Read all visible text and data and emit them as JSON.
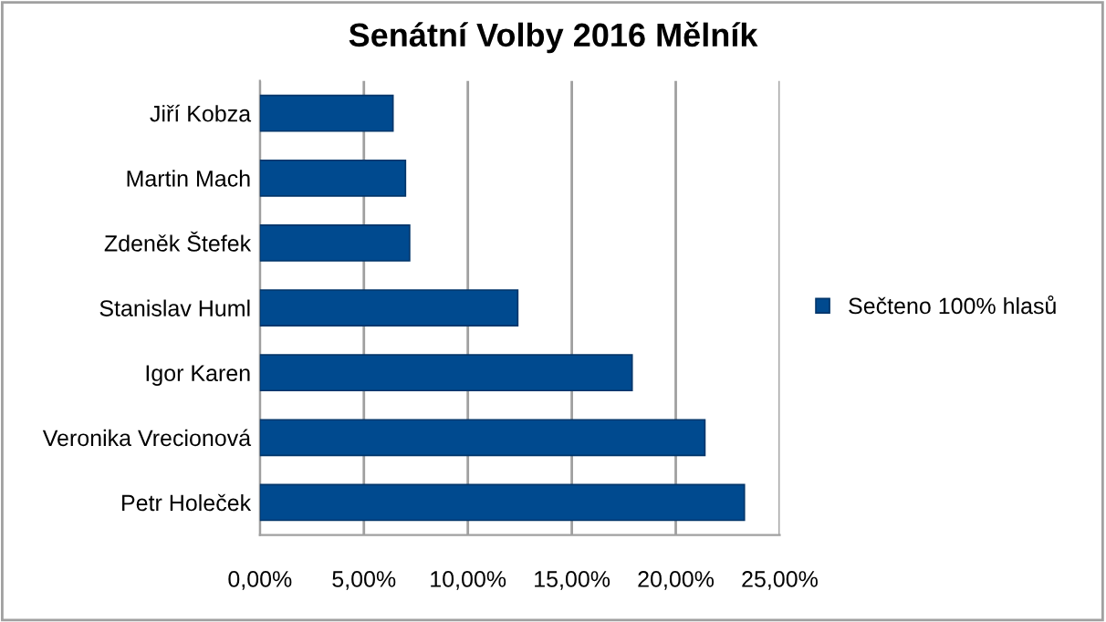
{
  "chart_data": {
    "type": "bar",
    "orientation": "horizontal",
    "title": "Senátní Volby 2016 Mělník",
    "categories": [
      "Jiří Kobza",
      "Martin Mach",
      "Zdeněk Štefek",
      "Stanislav Huml",
      "Igor Karen",
      "Veronika Vrecionová",
      "Petr Holeček"
    ],
    "series": [
      {
        "name": "Sečteno 100% hlasů",
        "color": "#004a8f",
        "values": [
          6.4,
          7.0,
          7.2,
          12.4,
          17.9,
          21.4,
          23.3
        ]
      }
    ],
    "xlim": [
      0,
      25
    ],
    "xticks": [
      {
        "value": 0,
        "label": "0,00%"
      },
      {
        "value": 5,
        "label": "5,00%"
      },
      {
        "value": 10,
        "label": "10,00%"
      },
      {
        "value": 15,
        "label": "15,00%"
      },
      {
        "value": 20,
        "label": "20,00%"
      },
      {
        "value": 25,
        "label": "25,00%"
      }
    ],
    "grid": "x",
    "legend": "right"
  }
}
